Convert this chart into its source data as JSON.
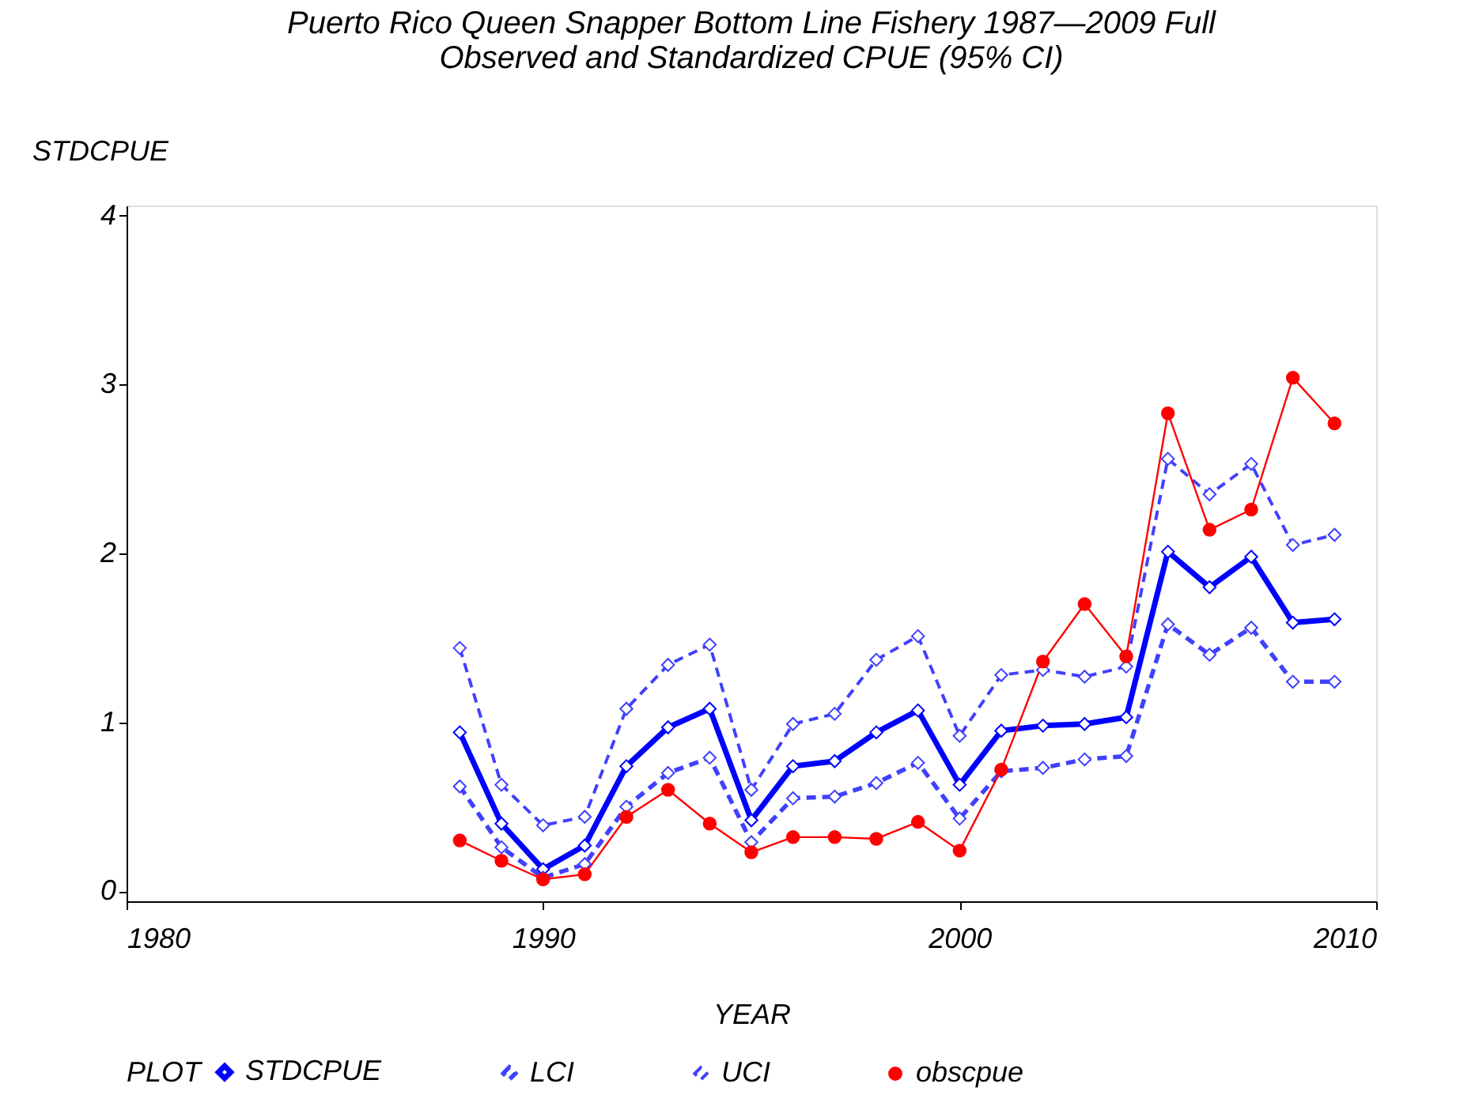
{
  "chart_data": {
    "type": "line",
    "title": [
      "Puerto Rico Queen Snapper Bottom Line Fishery 1987—2009 Full",
      "Observed and Standardized CPUE (95% CI)"
    ],
    "xlabel": "YEAR",
    "ylabel": "STDCPUE",
    "legend_title": "PLOT",
    "legend": "bottom",
    "grid": false,
    "x": [
      1988,
      1989,
      1990,
      1991,
      1992,
      1993,
      1994,
      1995,
      1996,
      1997,
      1998,
      1999,
      2000,
      2001,
      2002,
      2003,
      2004,
      2005,
      2006,
      2007,
      2008,
      2009
    ],
    "xlim": [
      1980,
      2010
    ],
    "xticks": [
      1980,
      1990,
      2000,
      2010
    ],
    "ylim": [
      -0.06,
      4.06
    ],
    "yticks": [
      0,
      1,
      2,
      3,
      4
    ],
    "series": [
      {
        "name": "STDCPUE",
        "color": "#0000ff",
        "line_style": "solid",
        "marker": "diamond",
        "values": [
          0.94,
          0.4,
          0.13,
          0.27,
          0.74,
          0.97,
          1.08,
          0.42,
          0.74,
          0.77,
          0.94,
          1.07,
          0.63,
          0.95,
          0.98,
          0.99,
          1.03,
          2.01,
          1.8,
          1.98,
          1.59,
          1.61
        ]
      },
      {
        "name": "LCI",
        "color": "#4040ff",
        "line_style": "dashed",
        "marker": "diamond",
        "values": [
          0.62,
          0.26,
          0.08,
          0.16,
          0.5,
          0.7,
          0.79,
          0.29,
          0.55,
          0.56,
          0.64,
          0.76,
          0.43,
          0.71,
          0.73,
          0.78,
          0.8,
          1.58,
          1.4,
          1.56,
          1.24,
          1.24
        ]
      },
      {
        "name": "UCI",
        "color": "#4040ff",
        "line_style": "dashed",
        "marker": "diamond",
        "values": [
          1.44,
          0.63,
          0.39,
          0.44,
          1.08,
          1.34,
          1.46,
          0.6,
          0.99,
          1.05,
          1.37,
          1.51,
          0.92,
          1.28,
          1.31,
          1.27,
          1.33,
          2.56,
          2.35,
          2.53,
          2.05,
          2.11
        ]
      },
      {
        "name": "obscpue",
        "color": "#ff0000",
        "line_style": "solid",
        "marker": "circle",
        "values": [
          0.3,
          0.18,
          0.07,
          0.1,
          0.44,
          0.6,
          0.4,
          0.23,
          0.32,
          0.32,
          0.31,
          0.41,
          0.24,
          0.72,
          1.36,
          1.7,
          1.39,
          2.83,
          2.14,
          2.26,
          3.04,
          2.77
        ]
      }
    ]
  }
}
